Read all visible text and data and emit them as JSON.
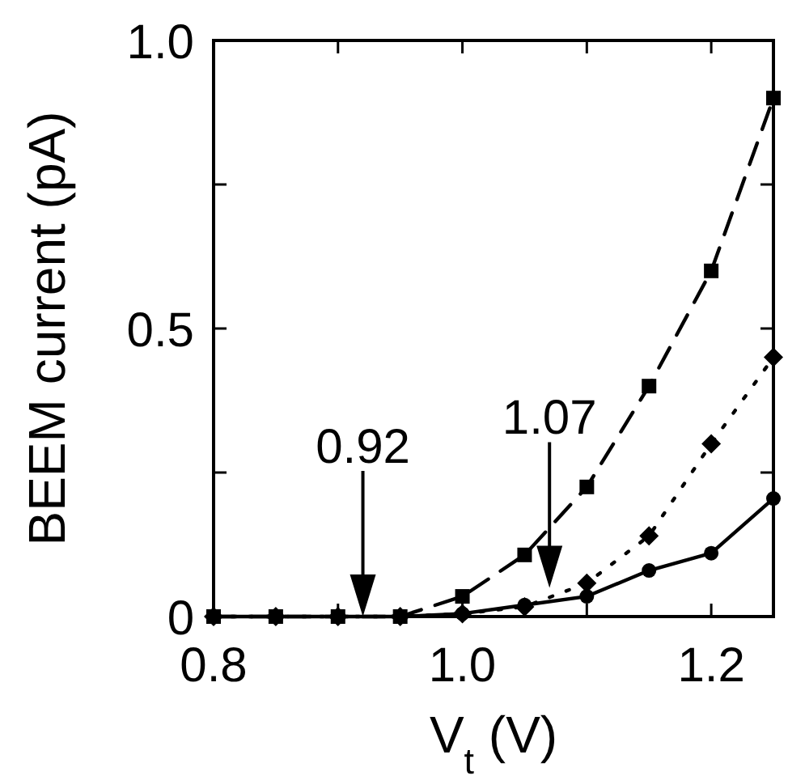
{
  "chart_data": {
    "type": "line",
    "xlabel": "V$_{t}$ (V)",
    "ylabel": "BEEM current (pA)",
    "x": [
      0.8,
      0.85,
      0.9,
      0.95,
      1.0,
      1.05,
      1.1,
      1.15,
      1.2,
      1.25
    ],
    "xlim": [
      0.8,
      1.25
    ],
    "xticks": [
      0.8,
      {
        "value": 0.9,
        "label": null
      },
      {
        "value": 1.0,
        "label": "1.0"
      },
      {
        "value": 1.1,
        "label": null
      },
      1.2
    ],
    "ylim": [
      0,
      1
    ],
    "yticks": [
      0,
      {
        "value": 0.25,
        "label": null
      },
      0.5,
      {
        "value": 0.75,
        "label": null
      },
      {
        "value": 1.0,
        "label": "1.0"
      }
    ],
    "grid": false,
    "series": [
      {
        "color": "#000000",
        "marker": "square",
        "line_style": "dashed",
        "values": [
          0,
          0,
          0,
          0,
          0.035,
          0.107,
          0.225,
          0.4,
          0.6,
          0.9
        ]
      },
      {
        "color": "#000000",
        "marker": "diamond",
        "line_style": "dotted",
        "values": [
          0,
          0,
          0,
          0,
          0.005,
          0.017,
          0.058,
          0.14,
          0.3,
          0.45
        ]
      },
      {
        "color": "#000000",
        "marker": "circle",
        "line_style": "solid",
        "values": [
          0,
          0,
          0,
          0,
          0.005,
          0.02,
          0.035,
          0.08,
          0.11,
          0.205
        ]
      }
    ],
    "annotations": [
      {
        "text": "0.92",
        "x": 0.92,
        "y": 0
      },
      {
        "text": "1.07",
        "x": 1.07,
        "y": 0.05
      }
    ]
  }
}
